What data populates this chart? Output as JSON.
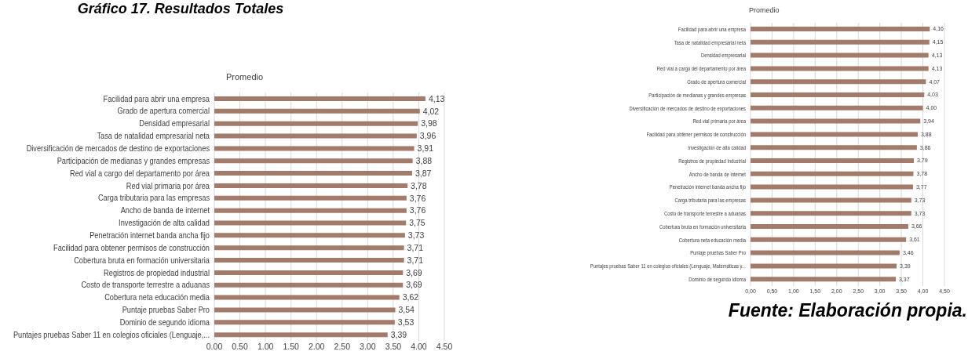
{
  "chart_data": [
    {
      "type": "bar",
      "orientation": "horizontal",
      "title": "Gráfico 17. Resultados Totales",
      "subtitle": "Promedio",
      "categories": [
        "Facilidad para abrir una empresa",
        "Grado de apertura comercial",
        "Densidad empresarial",
        "Tasa de natalidad empresarial neta",
        "Diversificación de mercados de destino de exportaciones",
        "Participación de medianas y grandes empresas",
        "Red vial a cargo del departamento por área",
        "Red vial primaria por área",
        "Carga tributaria para las empresas",
        "Ancho de banda de internet",
        "Investigación de alta calidad",
        "Penetración internet banda ancha fijo",
        "Facilidad para obtener permisos de construcción",
        "Cobertura bruta en formación universitaria",
        "Registros de propiedad industrial",
        "Costo de transporte terrestre a aduanas",
        "Cobertura neta educación media",
        "Puntaje pruebas Saber Pro",
        "Dominio de segundo idioma",
        "Puntajes pruebas Saber 11 en colegios oficiales (Lenguaje,..."
      ],
      "values": [
        4.13,
        4.02,
        3.98,
        3.96,
        3.91,
        3.88,
        3.87,
        3.78,
        3.76,
        3.76,
        3.75,
        3.73,
        3.71,
        3.71,
        3.69,
        3.69,
        3.62,
        3.54,
        3.53,
        3.39
      ],
      "value_labels": [
        "4,13",
        "4,02",
        "3,98",
        "3,96",
        "3,91",
        "3,88",
        "3,87",
        "3,78",
        "3,76",
        "3,76",
        "3,75",
        "3,73",
        "3,71",
        "3,71",
        "3,69",
        "3,69",
        "3,62",
        "3,54",
        "3,53",
        "3,39"
      ],
      "color": "#a37b6b",
      "xlim": [
        0,
        4.5
      ],
      "xticks": [
        {
          "value": 0,
          "label": "0.00"
        },
        {
          "value": 0.5,
          "label": "0.50"
        },
        {
          "value": 1,
          "label": "1.00"
        },
        {
          "value": 1.5,
          "label": "1.50"
        },
        {
          "value": 2,
          "label": "2.00"
        },
        {
          "value": 2.5,
          "label": "2.50"
        },
        {
          "value": 3,
          "label": "3.00"
        },
        {
          "value": 3.5,
          "label": "3.50"
        },
        {
          "value": 4,
          "label": "4.00"
        },
        {
          "value": 4.5,
          "label": "4.50"
        }
      ],
      "grid": "x"
    },
    {
      "type": "bar",
      "orientation": "horizontal",
      "title": "Promedio",
      "annotations": [
        "Fuente: Elaboración propia."
      ],
      "categories": [
        "Facilidad para abrir una empresa",
        "Tasa de natalidad empresarial neta",
        "Densidad empresarial",
        "Red vial a cargo del departamento por área",
        "Grado de apertura comercial",
        "Participación de medianas y grandes empresas",
        "Diversificación de mercados de destino de exportaciones",
        "Red vial primaria por área",
        "Facilidad para obtener permisos de construcción",
        "Investigación de alta calidad",
        "Registros de propiedad industrial",
        "Ancho de banda de internet",
        "Penetración internet banda ancha fijo",
        "Carga tributaria para las empresas",
        "Costo de transporte terrestre a aduanas",
        "Cobertura bruta en formación universitaria",
        "Cobertura neta educación media",
        "Puntaje pruebas Saber Pro",
        "Puntajes pruebas Saber 11 en colegios oficiales (Lenguaje, Matemáticas y...",
        "Dominio de segundo idioma"
      ],
      "values": [
        4.16,
        4.15,
        4.13,
        4.13,
        4.07,
        4.03,
        4.0,
        3.94,
        3.88,
        3.86,
        3.79,
        3.78,
        3.77,
        3.73,
        3.73,
        3.66,
        3.61,
        3.46,
        3.39,
        3.37
      ],
      "value_labels": [
        "4,16",
        "4,15",
        "4,13",
        "4,13",
        "4,07",
        "4,03",
        "4,00",
        "3,94",
        "3,88",
        "3,86",
        "3,79",
        "3,78",
        "3,77",
        "3,73",
        "3,73",
        "3,66",
        "3,61",
        "3,46",
        "3,39",
        "3,37"
      ],
      "color": "#a37b6b",
      "xlim": [
        0,
        4.5
      ],
      "xticks": [
        {
          "value": 0,
          "label": "0,00"
        },
        {
          "value": 0.5,
          "label": "0,50"
        },
        {
          "value": 1,
          "label": "1,00"
        },
        {
          "value": 1.5,
          "label": "1,50"
        },
        {
          "value": 2,
          "label": "2,00"
        },
        {
          "value": 2.5,
          "label": "2,50"
        },
        {
          "value": 3,
          "label": "3,00"
        },
        {
          "value": 3.5,
          "label": "3,50"
        },
        {
          "value": 4,
          "label": "4,00"
        },
        {
          "value": 4.5,
          "label": "4,50"
        }
      ],
      "grid": "x"
    }
  ]
}
